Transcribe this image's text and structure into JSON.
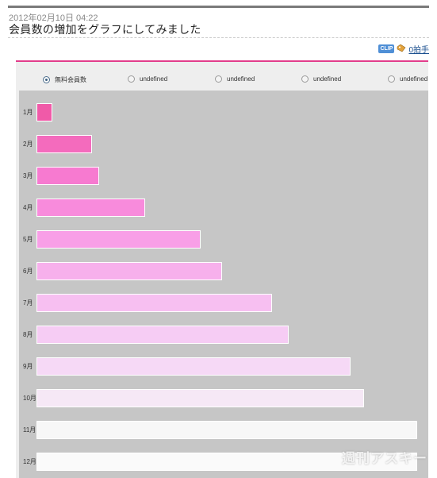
{
  "post": {
    "date": "2012年02月10日 04:22",
    "title": "会員数の増加をグラフにしてみました"
  },
  "share": {
    "clip_label": "CLIP",
    "clap_label": "0拍手"
  },
  "chart_data": {
    "type": "bar",
    "orientation": "horizontal",
    "legend": [
      "無料会員数",
      "undefined",
      "undefined",
      "undefined",
      "undefined"
    ],
    "legend_selected": 0,
    "categories": [
      "1月",
      "2月",
      "3月",
      "4月",
      "5月",
      "6月",
      "7月",
      "8月",
      "9月",
      "10月",
      "11月",
      "12月"
    ],
    "values": [
      20,
      70,
      79,
      137,
      207,
      234,
      297,
      318,
      396,
      413,
      480,
      480
    ],
    "xlim": [
      0,
      480
    ],
    "bar_colors": [
      "#f05aa8",
      "#f46bbd",
      "#f77ad0",
      "#f88bdc",
      "#f89fe7",
      "#f7b0ec",
      "#f7bff1",
      "#f6ccf4",
      "#f6d9f6",
      "#f6e8f6",
      "#f7f7f7",
      "#fafafa"
    ],
    "grid": false
  },
  "watermark": "週刊アスキー"
}
